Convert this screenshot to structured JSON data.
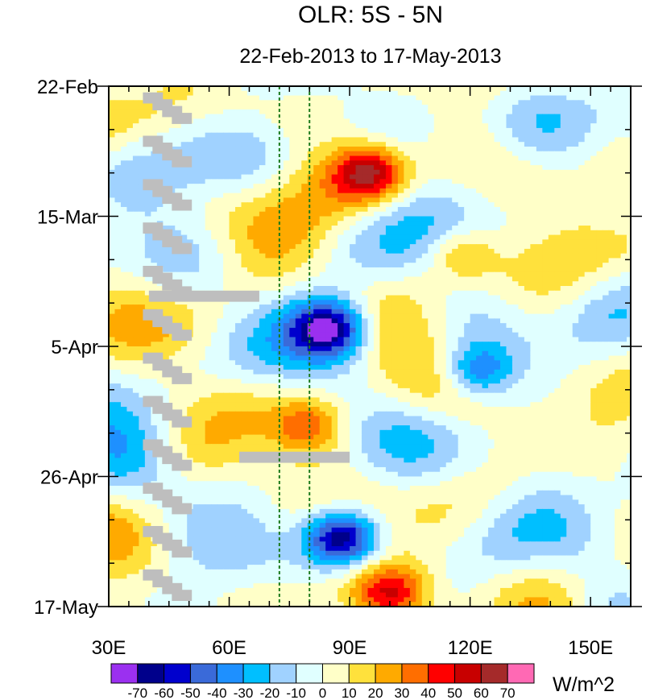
{
  "chart_data": {
    "type": "heatmap",
    "title": "OLR: 5S - 5N",
    "subtitle": "22-Feb-2013 to 17-May-2013",
    "xlabel": "",
    "ylabel": "",
    "x_range": [
      30,
      160
    ],
    "x_ticks": [
      30,
      60,
      90,
      120,
      150
    ],
    "x_tick_labels": [
      "30E",
      "60E",
      "90E",
      "120E",
      "150E"
    ],
    "y_start_date": "22-Feb",
    "y_total_days": 84,
    "y_ticks": [
      {
        "label": "22-Feb",
        "day": 0
      },
      {
        "label": "15-Mar",
        "day": 21
      },
      {
        "label": "5-Apr",
        "day": 42
      },
      {
        "label": "26-Apr",
        "day": 63
      },
      {
        "label": "17-May",
        "day": 84
      }
    ],
    "dashed_reference_lines_lon": [
      72.5,
      80
    ],
    "colorbar": {
      "unit": "W/m^2",
      "levels": [
        "-70",
        "-60",
        "-50",
        "-40",
        "-30",
        "-20",
        "-10",
        "0",
        "10",
        "20",
        "30",
        "40",
        "50",
        "60",
        "70"
      ],
      "colors": [
        "#9b30f0",
        "#00008b",
        "#0000cd",
        "#3a6ad9",
        "#1e90ff",
        "#00bfff",
        "#a0d2ff",
        "#e0ffff",
        "#ffffc8",
        "#ffe13c",
        "#ffaa00",
        "#ff6e00",
        "#ff0000",
        "#c80000",
        "#a52a2a",
        "#ff69b4"
      ]
    },
    "anomaly_features": [
      {
        "name": "positive-anomaly-central",
        "lon": 95,
        "day": 14,
        "value": 55
      },
      {
        "name": "positive-anomaly-east",
        "lon": 118,
        "day": 27,
        "value": 28
      },
      {
        "name": "negative-anomaly-april",
        "lon": 85,
        "day": 39,
        "value": -62
      },
      {
        "name": "negative-anomaly-east-april",
        "lon": 122,
        "day": 46,
        "value": -45
      },
      {
        "name": "positive-anomaly-april",
        "lon": 80,
        "day": 55,
        "value": 32
      },
      {
        "name": "negative-anomaly-may",
        "lon": 88,
        "day": 73,
        "value": -68
      },
      {
        "name": "positive-anomaly-late-may",
        "lon": 100,
        "day": 82,
        "value": 42
      }
    ]
  }
}
